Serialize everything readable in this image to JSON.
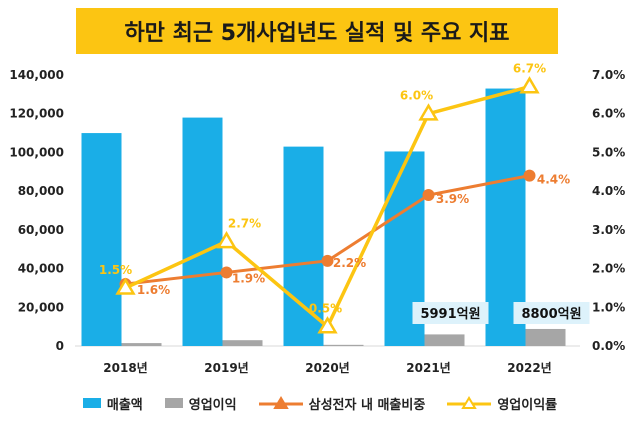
{
  "chart_data": {
    "type": "bar",
    "title": "하만 최근 5개사업년도 실적 및 주요 지표",
    "categories": [
      "2018년",
      "2019년",
      "2020년",
      "2021년",
      "2022년"
    ],
    "y_left": {
      "ticks": [
        "0",
        "20,000",
        "40,000",
        "60,000",
        "80,000",
        "100,000",
        "120,000",
        "140,000"
      ],
      "ylim": [
        0,
        140000
      ]
    },
    "y_right": {
      "ticks": [
        "0.0%",
        "1.0%",
        "2.0%",
        "3.0%",
        "4.0%",
        "5.0%",
        "6.0%",
        "7.0%"
      ],
      "ylim": [
        0,
        7
      ]
    },
    "series": [
      {
        "name": "매출액",
        "kind": "bar",
        "axis": "left",
        "color": "#1aaee7",
        "values": [
          110000,
          118000,
          103000,
          100500,
          133000
        ]
      },
      {
        "name": "영업이익",
        "kind": "bar",
        "axis": "left",
        "color": "#a6a6a6",
        "values": [
          1500,
          3000,
          600,
          5991,
          8800
        ]
      },
      {
        "name": "삼성전자 내 매출비중",
        "kind": "line",
        "axis": "right",
        "color": "#ed7d31",
        "values": [
          1.6,
          1.9,
          2.2,
          3.9,
          4.4
        ],
        "labels": [
          "1.6%",
          "1.9%",
          "2.2%",
          "3.9%",
          "4.4%"
        ]
      },
      {
        "name": "영업이익률",
        "kind": "line",
        "axis": "right",
        "color": "#fcc512",
        "values": [
          1.5,
          2.7,
          0.5,
          6.0,
          6.7
        ],
        "labels": [
          "1.5%",
          "2.7%",
          "0.5%",
          "6.0%",
          "6.7%"
        ]
      }
    ],
    "annotations": [
      {
        "category": "2021년",
        "text": "5991억원"
      },
      {
        "category": "2022년",
        "text": "8800억원"
      }
    ],
    "grid": false,
    "legend": "bottom"
  }
}
